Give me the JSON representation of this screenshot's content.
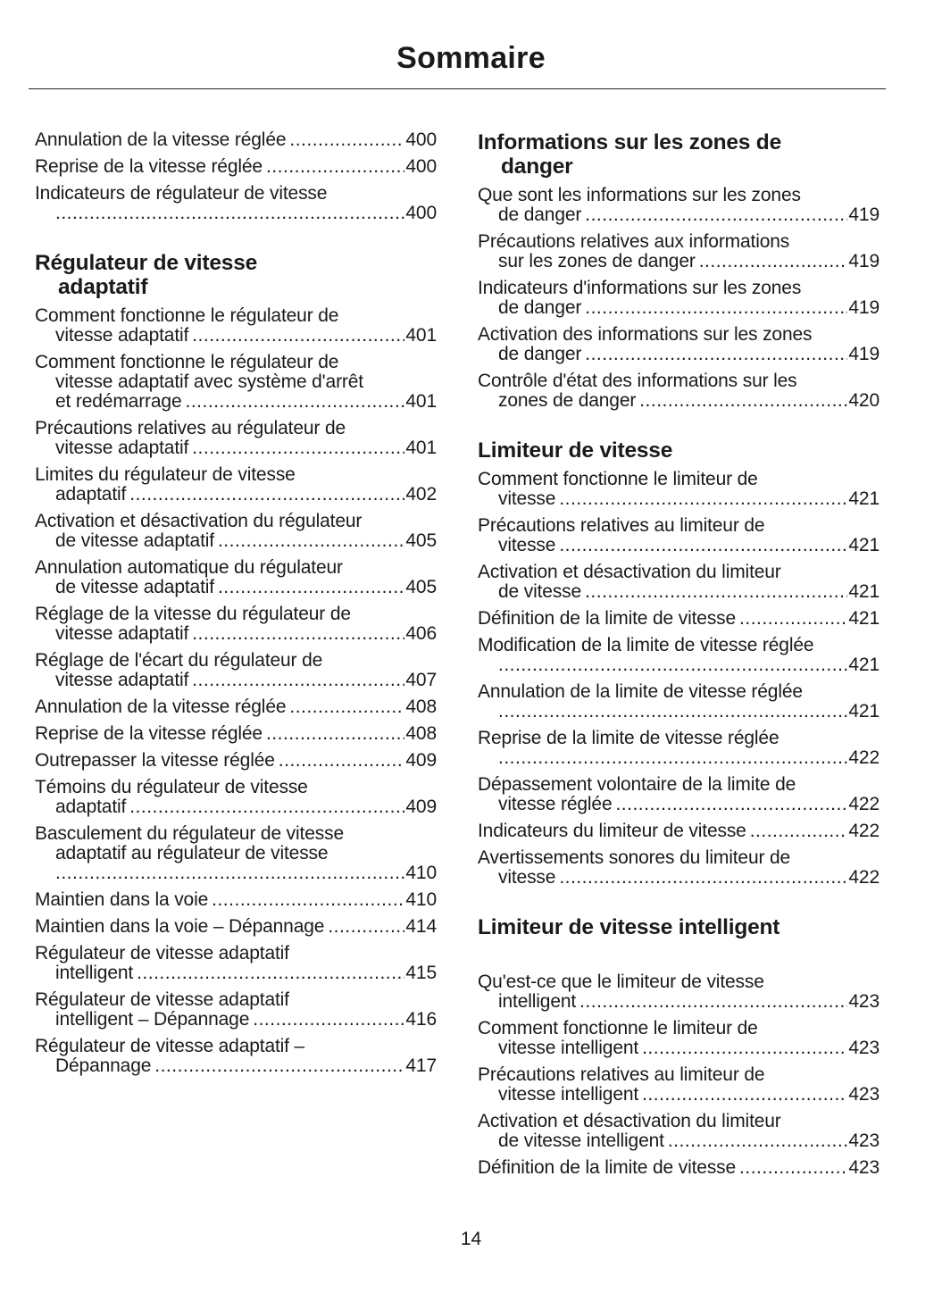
{
  "title": "Sommaire",
  "page_number": "14",
  "columns": [
    {
      "sections": [
        {
          "heading": [],
          "entries": [
            {
              "lines": [
                "Annulation de la vitesse réglée"
              ],
              "page": "400"
            },
            {
              "lines": [
                "Reprise de la vitesse réglée"
              ],
              "page": "400"
            },
            {
              "lines": [
                "Indicateurs de régulateur de vitesse",
                ""
              ],
              "page": "400"
            }
          ]
        },
        {
          "heading": [
            "Régulateur de vitesse",
            "adaptatif"
          ],
          "entries": [
            {
              "lines": [
                "Comment fonctionne le régulateur de",
                "vitesse adaptatif"
              ],
              "page": "401"
            },
            {
              "lines": [
                "Comment fonctionne le régulateur de",
                "vitesse adaptatif avec système d'arrêt",
                "et redémarrage"
              ],
              "page": "401"
            },
            {
              "lines": [
                "Précautions relatives au régulateur de",
                "vitesse adaptatif"
              ],
              "page": "401"
            },
            {
              "lines": [
                "Limites du régulateur de vitesse",
                "adaptatif"
              ],
              "page": "402"
            },
            {
              "lines": [
                "Activation et désactivation du régulateur",
                "de vitesse adaptatif"
              ],
              "page": "405"
            },
            {
              "lines": [
                "Annulation automatique du régulateur",
                "de vitesse adaptatif"
              ],
              "page": "405"
            },
            {
              "lines": [
                "Réglage de la vitesse du régulateur de",
                "vitesse adaptatif"
              ],
              "page": "406"
            },
            {
              "lines": [
                "Réglage de l'écart du régulateur de",
                "vitesse adaptatif"
              ],
              "page": "407"
            },
            {
              "lines": [
                "Annulation de la vitesse réglée"
              ],
              "page": "408"
            },
            {
              "lines": [
                "Reprise de la vitesse réglée"
              ],
              "page": "408"
            },
            {
              "lines": [
                "Outrepasser la vitesse réglée"
              ],
              "page": "409"
            },
            {
              "lines": [
                "Témoins du régulateur de vitesse",
                "adaptatif"
              ],
              "page": "409"
            },
            {
              "lines": [
                "Basculement du régulateur de vitesse",
                "adaptatif au régulateur de vitesse",
                ""
              ],
              "page": "410"
            },
            {
              "lines": [
                "Maintien dans la voie"
              ],
              "page": "410"
            },
            {
              "lines": [
                "Maintien dans la voie – Dépannage"
              ],
              "page": "414"
            },
            {
              "lines": [
                "Régulateur de vitesse adaptatif",
                "intelligent"
              ],
              "page": "415"
            },
            {
              "lines": [
                "Régulateur de vitesse adaptatif",
                "intelligent – Dépannage"
              ],
              "page": "416"
            },
            {
              "lines": [
                "Régulateur de vitesse adaptatif –",
                "Dépannage"
              ],
              "page": "417"
            }
          ]
        }
      ]
    },
    {
      "sections": [
        {
          "heading": [
            "Informations sur les zones de",
            "danger"
          ],
          "entries": [
            {
              "lines": [
                "Que sont les informations sur les zones",
                "de danger"
              ],
              "page": "419"
            },
            {
              "lines": [
                "Précautions relatives aux informations",
                "sur les zones de danger"
              ],
              "page": "419"
            },
            {
              "lines": [
                "Indicateurs d'informations sur les zones",
                "de danger"
              ],
              "page": "419"
            },
            {
              "lines": [
                "Activation des informations sur les zones",
                "de danger"
              ],
              "page": "419"
            },
            {
              "lines": [
                "Contrôle d'état des informations sur les",
                "zones de danger"
              ],
              "page": "420"
            }
          ]
        },
        {
          "heading": [
            "Limiteur de vitesse"
          ],
          "entries": [
            {
              "lines": [
                "Comment fonctionne le limiteur de",
                "vitesse"
              ],
              "page": "421"
            },
            {
              "lines": [
                "Précautions relatives au limiteur de",
                "vitesse"
              ],
              "page": "421"
            },
            {
              "lines": [
                "Activation et désactivation du limiteur",
                "de vitesse"
              ],
              "page": "421"
            },
            {
              "lines": [
                "Définition de la limite de vitesse"
              ],
              "page": "421"
            },
            {
              "lines": [
                "Modification de la limite de vitesse réglée",
                ""
              ],
              "page": "421"
            },
            {
              "lines": [
                "Annulation de la limite de vitesse réglée",
                ""
              ],
              "page": "421"
            },
            {
              "lines": [
                "Reprise de la limite de vitesse réglée",
                ""
              ],
              "page": "422"
            },
            {
              "lines": [
                "Dépassement volontaire de la limite de",
                "vitesse réglée"
              ],
              "page": "422"
            },
            {
              "lines": [
                "Indicateurs du limiteur de vitesse"
              ],
              "page": "422"
            },
            {
              "lines": [
                "Avertissements sonores du limiteur de",
                "vitesse"
              ],
              "page": "422"
            }
          ]
        },
        {
          "heading": [
            "Limiteur de vitesse intelligent"
          ],
          "entries": [
            {
              "lines": [
                "Qu'est-ce que le limiteur de vitesse",
                "intelligent"
              ],
              "page": "423"
            },
            {
              "lines": [
                "Comment fonctionne le limiteur de",
                "vitesse intelligent"
              ],
              "page": "423"
            },
            {
              "lines": [
                "Précautions relatives au limiteur de",
                "vitesse intelligent"
              ],
              "page": "423"
            },
            {
              "lines": [
                "Activation et désactivation du limiteur",
                "de vitesse intelligent"
              ],
              "page": "423"
            },
            {
              "lines": [
                "Définition de la limite de vitesse"
              ],
              "page": "423"
            }
          ]
        }
      ]
    }
  ]
}
